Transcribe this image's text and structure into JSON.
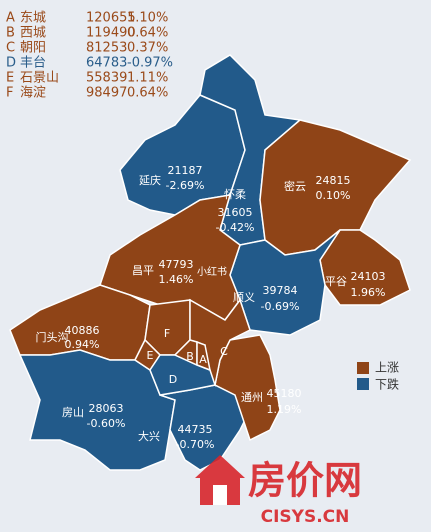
{
  "summary": [
    {
      "letter": "A",
      "name": "东城",
      "price": "120655",
      "change": "1.10%"
    },
    {
      "letter": "B",
      "name": "西城",
      "price": "119490",
      "change": "0.64%"
    },
    {
      "letter": "C",
      "name": "朝阳",
      "price": "81253",
      "change": "0.37%"
    },
    {
      "letter": "D",
      "name": "丰台",
      "price": "64783",
      "change": "-0.97%"
    },
    {
      "letter": "E",
      "name": "石景山",
      "price": "55839",
      "change": "1.11%"
    },
    {
      "letter": "F",
      "name": "海淀",
      "price": "98497",
      "change": "0.64%"
    }
  ],
  "districts": [
    {
      "name": "延庆",
      "price": "21187",
      "change": "-2.69%"
    },
    {
      "name": "怀柔",
      "price": "31605",
      "change": "-0.42%"
    },
    {
      "name": "密云",
      "price": "24815",
      "change": "0.10%"
    },
    {
      "name": "昌平",
      "price": "47793",
      "change": "1.46%"
    },
    {
      "name": "平谷",
      "price": "24103",
      "change": "1.96%"
    },
    {
      "name": "顺义",
      "price": "39784",
      "change": "-0.69%"
    },
    {
      "name": "门头沟",
      "price": "40886",
      "change": "0.94%"
    },
    {
      "name": "房山",
      "price": "28063",
      "change": "-0.60%"
    },
    {
      "name": "大兴",
      "price": "44735",
      "change": "-0.70%"
    },
    {
      "name": "通州",
      "price": "45180",
      "change": "1.19%"
    }
  ],
  "small_labels": [
    "F",
    "E",
    "B",
    "A",
    "C",
    "D"
  ],
  "legend": {
    "up": "上涨",
    "down": "下跌"
  },
  "watermark": {
    "site": "房价网",
    "url": "CISYS.CN",
    "note": "小红书"
  }
}
